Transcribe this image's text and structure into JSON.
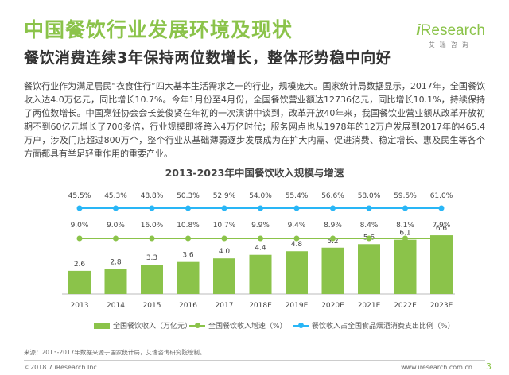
{
  "header": {
    "title": "中国餐饮行业发展环境及现状",
    "subtitle": "餐饮消费连续3年保持两位数增长，整体形势稳中向好"
  },
  "logo": {
    "i": "i",
    "research": "Research",
    "sub": "艾瑞咨询"
  },
  "body_text": "餐饮行业作为满足居民“衣食住行”四大基本生活需求之一的行业，规模庞大。国家统计局数据显示，2017年，全国餐饮收入达4.0万亿元，同比增长10.7%。今年1月份至4月份，全国餐饮营业额达12736亿元，同比增长10.1%，持续保持了两位数增长。中国烹饪协会会长姜俊贤在年初的一次演讲中谈到，改革开放40年来，我国餐饮业营业额从改革开放初期不到60亿元增长了700多倍，行业规模即将跨入4万亿时代；服务网点也从1978年的12万户发展到2017年的465.4万户，涉及门店超过800万个，整个行业从基础薄弱逐步发展成为在扩大内需、促进消费、稳定增长、惠及民生等各个方面都具有举足轻重作用的重要产业。",
  "chart_data": {
    "type": "bar",
    "title": "2013-2023年中国餐饮收入规模与增速",
    "categories": [
      "2013",
      "2014",
      "2015",
      "2016",
      "2017",
      "2018E",
      "2019E",
      "2020E",
      "2021E",
      "2022E",
      "2023E"
    ],
    "series": [
      {
        "name": "全国餐饮收入（万亿元）",
        "type": "bar",
        "values": [
          2.6,
          2.8,
          3.3,
          3.6,
          4.0,
          4.4,
          4.8,
          5.2,
          5.6,
          6.1,
          6.6
        ],
        "labels": [
          "2.6",
          "2.8",
          "3.3",
          "3.6",
          "4.0",
          "4.4",
          "4.8",
          "5.2",
          "5.6",
          "6.1",
          "6.6"
        ]
      },
      {
        "name": "全国餐饮收入增速（%）",
        "type": "line",
        "values": [
          9.0,
          9.0,
          16.0,
          10.8,
          10.7,
          9.9,
          9.4,
          8.9,
          8.4,
          8.1,
          7.9
        ],
        "labels": [
          "9.0%",
          "9.0%",
          "16.0%",
          "10.8%",
          "10.7%",
          "9.9%",
          "9.4%",
          "8.9%",
          "8.4%",
          "8.1%",
          "7.9%"
        ]
      },
      {
        "name": "餐饮收入占全国食品烟酒消费支出比例（%）",
        "type": "line",
        "values": [
          45.5,
          45.3,
          48.8,
          50.3,
          52.9,
          54.0,
          55.4,
          56.6,
          58.0,
          59.5,
          61.0
        ],
        "labels": [
          "45.5%",
          "45.3%",
          "48.8%",
          "50.3%",
          "52.9%",
          "54.0%",
          "55.4%",
          "56.6%",
          "58.0%",
          "59.5%",
          "61.0%"
        ]
      }
    ],
    "colors": {
      "bar": "#8bc34a",
      "growth": "#8bc34a",
      "share": "#29b6f6"
    }
  },
  "legend": {
    "bar": "全国餐饮收入（万亿元）",
    "growth": "全国餐饮收入增速（%）",
    "share": "餐饮收入占全国食品烟酒消费支出比例（%）"
  },
  "source": "来源：2013-2017年数据来源于国家统计局，艾瑞咨询研究院绘制。",
  "footer": {
    "copyright": "©2018.7 iResearch Inc",
    "url": "www.iresearch.com.cn",
    "page": "3"
  }
}
